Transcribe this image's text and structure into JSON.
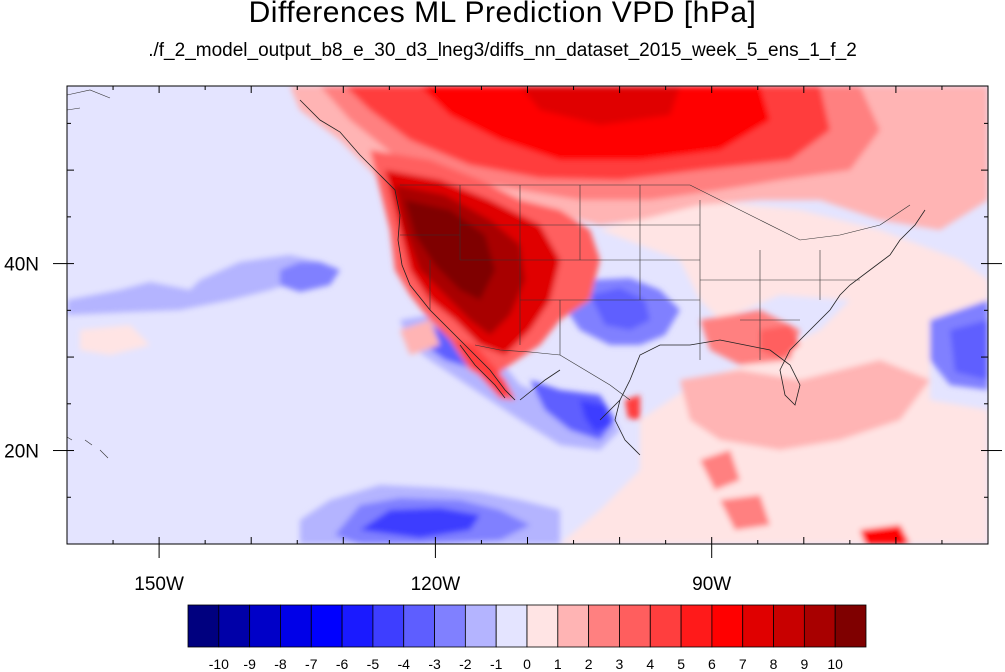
{
  "title": "Differences ML Prediction VPD [hPa]",
  "subtitle": "./f_2_model_output_b8_e_30_d3_lneg3/diffs_nn_dataset_2015_week_5_ens_1_f_2",
  "map": {
    "lon_range": [
      -160,
      -60
    ],
    "lat_range": [
      10,
      59
    ],
    "lon_ticks": [
      {
        "value": -150,
        "label": "150W"
      },
      {
        "value": -120,
        "label": "120W"
      },
      {
        "value": -90,
        "label": "90W"
      }
    ],
    "lat_ticks": [
      {
        "value": 40,
        "label": "40N"
      },
      {
        "value": 20,
        "label": "20N"
      }
    ]
  },
  "colorbar": {
    "colors": [
      "#00007f",
      "#0000a8",
      "#0000c8",
      "#0000e8",
      "#0000ff",
      "#1a1aff",
      "#3e3eff",
      "#5e5eff",
      "#8080ff",
      "#b4b4ff",
      "#e4e4ff",
      "#ffe4e4",
      "#ffb4b4",
      "#ff8080",
      "#ff5e5e",
      "#ff3e3e",
      "#ff1a1a",
      "#ff0000",
      "#e00000",
      "#c80000",
      "#a80000",
      "#7f0000"
    ],
    "labels": [
      "-10",
      "-9",
      "-8",
      "-7",
      "-6",
      "-5",
      "-4",
      "-3",
      "-2",
      "-1",
      "0",
      "1",
      "2",
      "3",
      "4",
      "5",
      "6",
      "7",
      "8",
      "9",
      "10"
    ]
  }
}
